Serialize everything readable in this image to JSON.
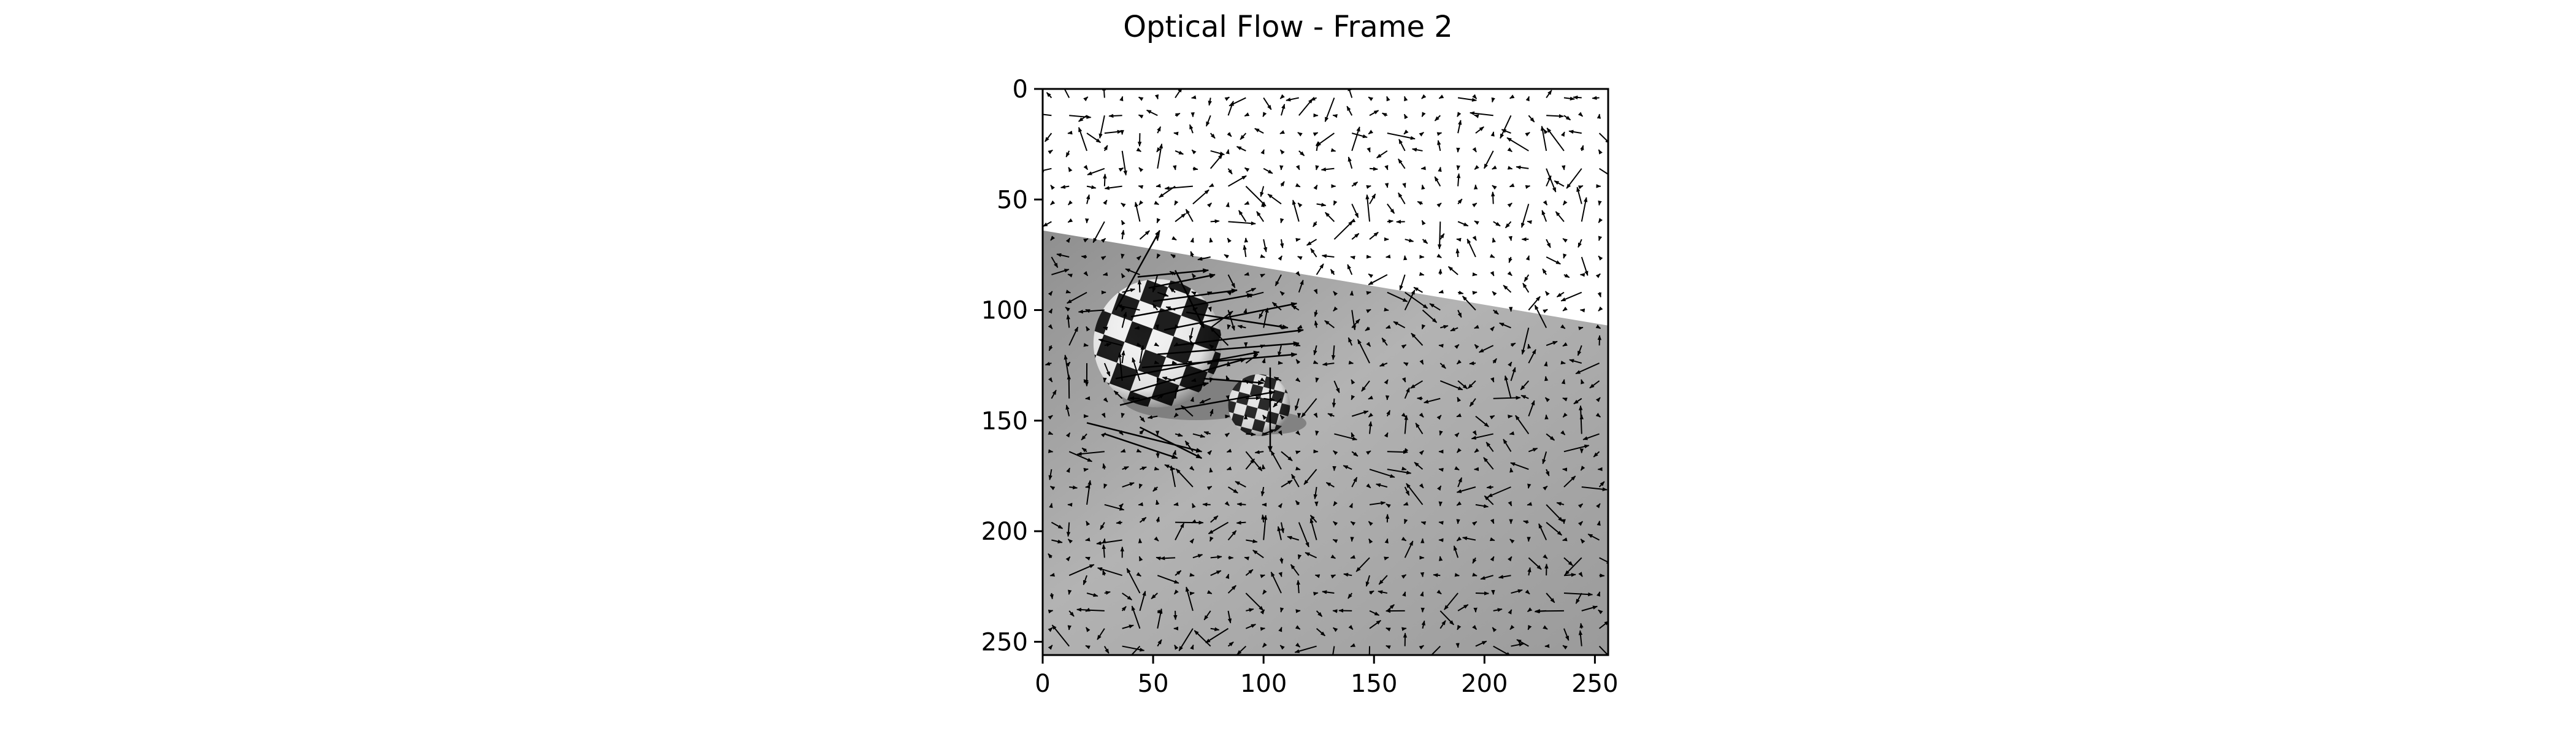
{
  "chart_data": {
    "type": "quiver",
    "title": "Optical Flow - Frame 2",
    "xlabel": "",
    "ylabel": "",
    "xlim": [
      0,
      256
    ],
    "ylim": [
      256,
      0
    ],
    "x_ticks": [
      "0",
      "50",
      "100",
      "150",
      "200",
      "250"
    ],
    "y_ticks": [
      "0",
      "50",
      "100",
      "150",
      "200",
      "250"
    ],
    "grid": false,
    "legend": "none",
    "background": {
      "image": "grayscale scene: white upper wall, gray floor, two checkered spheres",
      "wall_color": "#ffffff",
      "floor_color": "#a3a3a3",
      "checker_dark": "#1a1a1a",
      "checker_light": "#f2f2f2",
      "horizon_left_y": 64,
      "horizon_right_y": 107,
      "large_sphere": {
        "cx": 52,
        "cy": 115,
        "r": 29
      },
      "small_sphere": {
        "cx": 98,
        "cy": 143,
        "r": 14
      }
    },
    "vector_grid_spacing": 8,
    "vector_color": "#000000",
    "highlight_vectors": [
      {
        "x": 33,
        "y": 100,
        "u": 20,
        "v": -36
      },
      {
        "x": 43,
        "y": 85,
        "u": 32,
        "v": -3
      },
      {
        "x": 48,
        "y": 90,
        "u": 30,
        "v": -6
      },
      {
        "x": 50,
        "y": 96,
        "u": 38,
        "v": -5
      },
      {
        "x": 40,
        "y": 103,
        "u": 55,
        "v": -10
      },
      {
        "x": 55,
        "y": 109,
        "u": 60,
        "v": -12
      },
      {
        "x": 60,
        "y": 116,
        "u": 58,
        "v": -7
      },
      {
        "x": 52,
        "y": 120,
        "u": 64,
        "v": -5
      },
      {
        "x": 45,
        "y": 126,
        "u": 70,
        "v": -6
      },
      {
        "x": 33,
        "y": 131,
        "u": 65,
        "v": -12
      },
      {
        "x": 40,
        "y": 137,
        "u": 52,
        "v": -15
      },
      {
        "x": 35,
        "y": 143,
        "u": 40,
        "v": -10
      },
      {
        "x": 20,
        "y": 151,
        "u": 52,
        "v": 13
      },
      {
        "x": 28,
        "y": 156,
        "u": 33,
        "v": 11
      },
      {
        "x": 44,
        "y": 153,
        "u": 28,
        "v": 14
      },
      {
        "x": 60,
        "y": 145,
        "u": 45,
        "v": -8
      },
      {
        "x": 73,
        "y": 131,
        "u": 27,
        "v": 2
      },
      {
        "x": 103,
        "y": 126,
        "u": 0,
        "v": 38
      },
      {
        "x": 65,
        "y": 101,
        "u": 46,
        "v": 7
      },
      {
        "x": 60,
        "y": 82,
        "u": 13,
        "v": 26
      }
    ]
  }
}
